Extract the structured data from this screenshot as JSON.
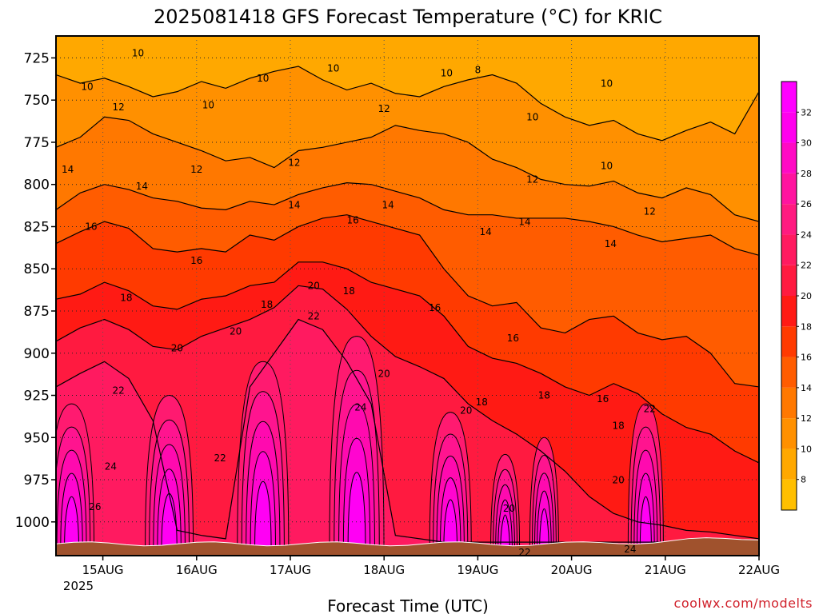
{
  "chart_data": {
    "type": "heatmap",
    "title": "2025081418 GFS Forecast Temperature (°C) for KRIC",
    "xlabel": "Forecast Time (UTC)",
    "ylabel": "",
    "credit": "coolwx.com/modelts",
    "x_ticks": [
      "15AUG",
      "16AUG",
      "17AUG",
      "18AUG",
      "19AUG",
      "20AUG",
      "21AUG",
      "22AUG"
    ],
    "x_year": "2025",
    "y_ticks": [
      725,
      750,
      775,
      800,
      825,
      850,
      875,
      900,
      925,
      950,
      975,
      1000
    ],
    "y_range_hpa": [
      712,
      1020
    ],
    "x_range_hours": [
      -12,
      168
    ],
    "colorbar": {
      "ticks": [
        8,
        10,
        12,
        14,
        16,
        18,
        20,
        22,
        24,
        26,
        28,
        30,
        32
      ],
      "colors": [
        "#ffbf00",
        "#ffa800",
        "#ff9000",
        "#ff7800",
        "#ff5c00",
        "#ff3a00",
        "#ff1a14",
        "#ff1a40",
        "#ff1a60",
        "#ff1a80",
        "#ff149f",
        "#ff0ac4",
        "#ff00ee",
        "#ff00ff"
      ],
      "range": [
        6,
        34
      ]
    },
    "temperature_levels": {
      "t_10": [
        735,
        740,
        737,
        742,
        748,
        745,
        739,
        743,
        737,
        733,
        730,
        738,
        744,
        740,
        746,
        748,
        742,
        738,
        735,
        740,
        752,
        760,
        765,
        762,
        770,
        774,
        768,
        763,
        770,
        745
      ],
      "t_12": [
        778,
        772,
        760,
        762,
        770,
        775,
        780,
        786,
        784,
        790,
        780,
        778,
        775,
        772,
        765,
        768,
        770,
        775,
        785,
        790,
        797,
        800,
        801,
        798,
        805,
        808,
        802,
        806,
        818,
        822
      ],
      "t_14": [
        815,
        805,
        800,
        803,
        808,
        810,
        814,
        815,
        810,
        812,
        806,
        802,
        799,
        800,
        804,
        808,
        815,
        818,
        818,
        820,
        820,
        820,
        822,
        825,
        830,
        834,
        832,
        830,
        838,
        842
      ],
      "t_16": [
        835,
        828,
        822,
        826,
        838,
        840,
        838,
        840,
        830,
        833,
        825,
        820,
        818,
        822,
        826,
        830,
        850,
        866,
        872,
        870,
        885,
        888,
        880,
        878,
        888,
        892,
        890,
        900,
        918,
        920
      ],
      "t_18": [
        868,
        865,
        858,
        863,
        872,
        874,
        868,
        866,
        860,
        858,
        846,
        846,
        850,
        858,
        862,
        866,
        878,
        896,
        903,
        906,
        912,
        920,
        925,
        918,
        924,
        936,
        944,
        948,
        958,
        965
      ],
      "t_20": [
        893,
        885,
        880,
        886,
        896,
        898,
        890,
        885,
        880,
        873,
        860,
        862,
        874,
        890,
        902,
        908,
        915,
        930,
        940,
        948,
        958,
        970,
        985,
        995,
        1000,
        1002,
        1005,
        1006,
        1008,
        1010
      ],
      "t_22": [
        920,
        912,
        905,
        915,
        940,
        1005,
        1008,
        1010,
        920,
        900,
        880,
        886,
        905,
        930,
        1008,
        1010,
        1012,
        1012,
        1012,
        1012,
        1012,
        1012,
        1012,
        1012,
        1012,
        1012,
        1012,
        1012,
        1012,
        1012
      ]
    },
    "contour_labels": [
      {
        "text": "10",
        "hour": -4,
        "hpa": 744
      },
      {
        "text": "10",
        "hour": 9,
        "hpa": 724
      },
      {
        "text": "10",
        "hour": 27,
        "hpa": 755
      },
      {
        "text": "10",
        "hour": 41,
        "hpa": 739
      },
      {
        "text": "10",
        "hour": 59,
        "hpa": 733
      },
      {
        "text": "10",
        "hour": 88,
        "hpa": 736
      },
      {
        "text": "8",
        "hour": 96,
        "hpa": 734
      },
      {
        "text": "10",
        "hour": 110,
        "hpa": 762
      },
      {
        "text": "10",
        "hour": 129,
        "hpa": 742
      },
      {
        "text": "10",
        "hour": 129,
        "hpa": 791
      },
      {
        "text": "12",
        "hour": 4,
        "hpa": 756
      },
      {
        "text": "12",
        "hour": 24,
        "hpa": 793
      },
      {
        "text": "12",
        "hour": 49,
        "hpa": 789
      },
      {
        "text": "12",
        "hour": 72,
        "hpa": 757
      },
      {
        "text": "12",
        "hour": 110,
        "hpa": 799
      },
      {
        "text": "12",
        "hour": 140,
        "hpa": 818
      },
      {
        "text": "14",
        "hour": -9,
        "hpa": 793
      },
      {
        "text": "14",
        "hour": 10,
        "hpa": 803
      },
      {
        "text": "14",
        "hour": 49,
        "hpa": 814
      },
      {
        "text": "14",
        "hour": 73,
        "hpa": 814
      },
      {
        "text": "14",
        "hour": 98,
        "hpa": 830
      },
      {
        "text": "14",
        "hour": 108,
        "hpa": 824
      },
      {
        "text": "14",
        "hour": 130,
        "hpa": 837
      },
      {
        "text": "16",
        "hour": -3,
        "hpa": 827
      },
      {
        "text": "16",
        "hour": 24,
        "hpa": 847
      },
      {
        "text": "16",
        "hour": 64,
        "hpa": 823
      },
      {
        "text": "16",
        "hour": 85,
        "hpa": 875
      },
      {
        "text": "16",
        "hour": 105,
        "hpa": 893
      },
      {
        "text": "16",
        "hour": 128,
        "hpa": 929
      },
      {
        "text": "18",
        "hour": 6,
        "hpa": 869
      },
      {
        "text": "18",
        "hour": 42,
        "hpa": 873
      },
      {
        "text": "18",
        "hour": 63,
        "hpa": 865
      },
      {
        "text": "18",
        "hour": 97,
        "hpa": 931
      },
      {
        "text": "18",
        "hour": 113,
        "hpa": 927
      },
      {
        "text": "18",
        "hour": 132,
        "hpa": 945
      },
      {
        "text": "20",
        "hour": 19,
        "hpa": 899
      },
      {
        "text": "20",
        "hour": 34,
        "hpa": 889
      },
      {
        "text": "20",
        "hour": 54,
        "hpa": 862
      },
      {
        "text": "20",
        "hour": 72,
        "hpa": 914
      },
      {
        "text": "20",
        "hour": 93,
        "hpa": 936
      },
      {
        "text": "20",
        "hour": 104,
        "hpa": 994
      },
      {
        "text": "20",
        "hour": 132,
        "hpa": 977
      },
      {
        "text": "22",
        "hour": 4,
        "hpa": 924
      },
      {
        "text": "22",
        "hour": 30,
        "hpa": 964
      },
      {
        "text": "22",
        "hour": 54,
        "hpa": 880
      },
      {
        "text": "22",
        "hour": 108,
        "hpa": 1020
      },
      {
        "text": "22",
        "hour": 140,
        "hpa": 935
      },
      {
        "text": "24",
        "hour": 2,
        "hpa": 969
      },
      {
        "text": "24",
        "hour": 66,
        "hpa": 934
      },
      {
        "text": "24",
        "hour": 135,
        "hpa": 1018
      },
      {
        "text": "26",
        "hour": -2,
        "hpa": 993
      }
    ],
    "grid": true,
    "legend": "colorbar-right"
  }
}
